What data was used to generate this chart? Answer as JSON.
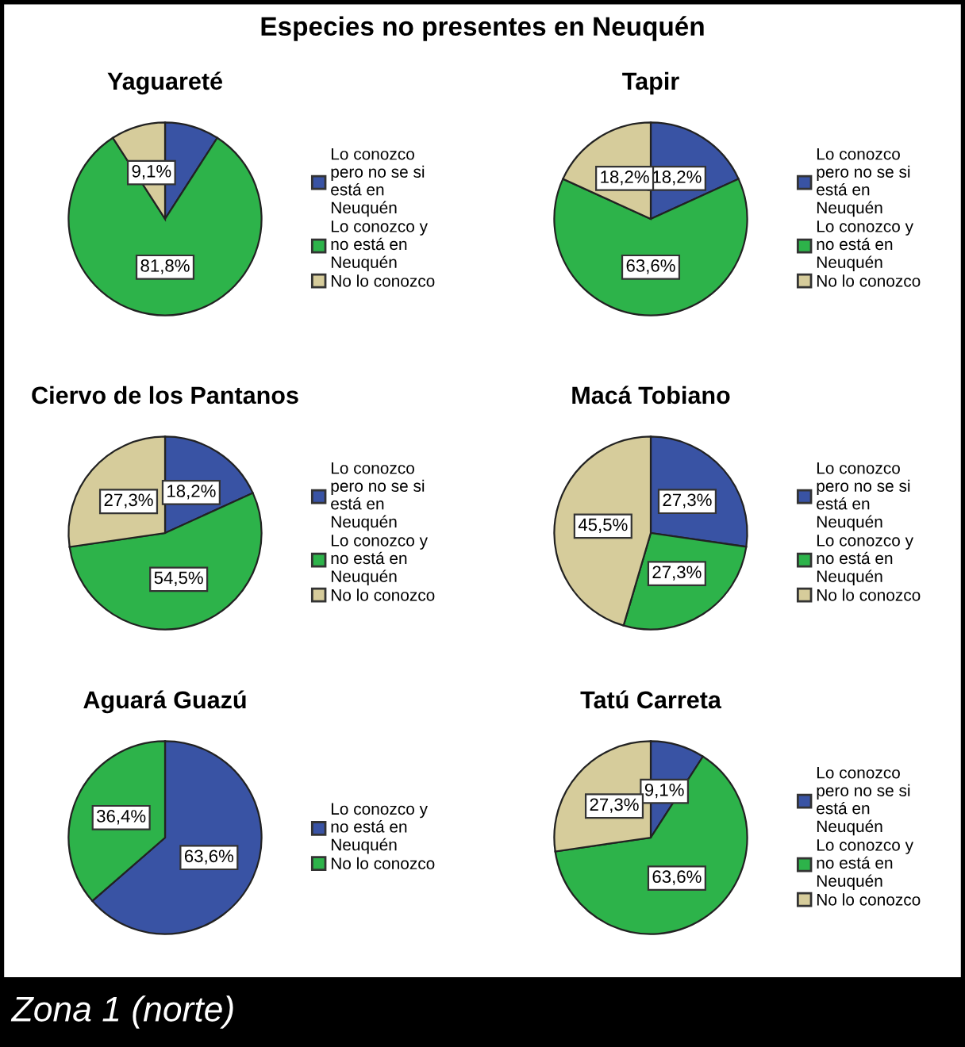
{
  "chart_data": [
    {
      "type": "pie",
      "title": "Yaguareté",
      "categories": [
        "Lo conozco pero no se si está en Neuquén",
        "Lo conozco y no está en Neuquén",
        "No lo conozco"
      ],
      "values": [
        9.1,
        81.8,
        9.1
      ],
      "colors": [
        "#3953a4",
        "#2db34a",
        "#d6cc9b"
      ],
      "value_labels": [
        null,
        "81,8%",
        "9,1%"
      ],
      "legend": "right"
    },
    {
      "type": "pie",
      "title": "Tapir",
      "categories": [
        "Lo conozco pero no se si está en Neuquén",
        "Lo conozco y no está en Neuquén",
        "No lo conozco"
      ],
      "values": [
        18.2,
        63.6,
        18.2
      ],
      "colors": [
        "#3953a4",
        "#2db34a",
        "#d6cc9b"
      ],
      "value_labels": [
        "18,2%",
        "63,6%",
        "18,2%"
      ],
      "legend": "right"
    },
    {
      "type": "pie",
      "title": "Ciervo de los Pantanos",
      "categories": [
        "Lo conozco pero no se si está en Neuquén",
        "Lo conozco y no está en Neuquén",
        "No lo conozco"
      ],
      "values": [
        18.2,
        54.5,
        27.3
      ],
      "colors": [
        "#3953a4",
        "#2db34a",
        "#d6cc9b"
      ],
      "value_labels": [
        "18,2%",
        "54,5%",
        "27,3%"
      ],
      "legend": "right"
    },
    {
      "type": "pie",
      "title": "Macá Tobiano",
      "categories": [
        "Lo conozco pero no se si está en Neuquén",
        "Lo conozco y no está en Neuquén",
        "No lo conozco"
      ],
      "values": [
        27.3,
        27.3,
        45.5
      ],
      "colors": [
        "#3953a4",
        "#2db34a",
        "#d6cc9b"
      ],
      "value_labels": [
        "27,3%",
        "27,3%",
        "45,5%"
      ],
      "legend": "right"
    },
    {
      "type": "pie",
      "title": "Aguará Guazú",
      "categories": [
        "Lo conozco y no está en Neuquén",
        "No lo conozco"
      ],
      "values": [
        63.6,
        36.4
      ],
      "colors": [
        "#3953a4",
        "#2db34a"
      ],
      "value_labels": [
        "63,6%",
        "36,4%"
      ],
      "legend": "right"
    },
    {
      "type": "pie",
      "title": "Tatú Carreta",
      "categories": [
        "Lo conozco pero no se si está en Neuquén",
        "Lo conozco y no está en Neuquén",
        "No lo conozco"
      ],
      "values": [
        9.1,
        63.6,
        27.3
      ],
      "colors": [
        "#3953a4",
        "#2db34a",
        "#d6cc9b"
      ],
      "value_labels": [
        "9,1%",
        "63,6%",
        "27,3%"
      ],
      "legend": "right"
    },
    {
      "type": "other",
      "title": "Especies no presentes en Neuquén",
      "annotations": [
        "Zona 1 (norte)"
      ]
    }
  ]
}
